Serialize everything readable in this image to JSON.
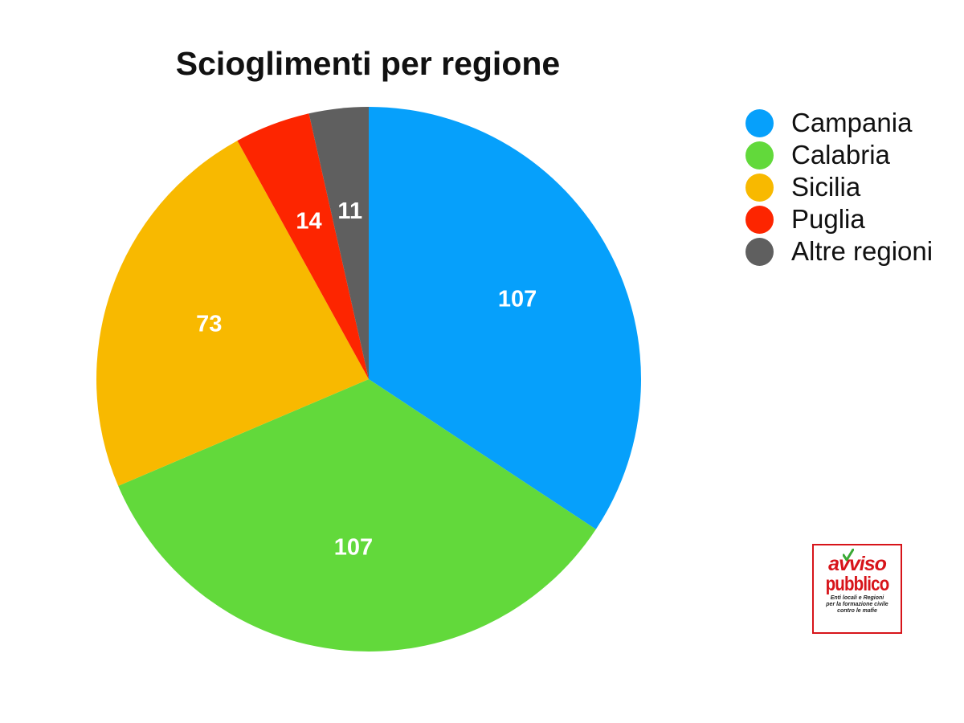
{
  "chart_data": {
    "type": "pie",
    "title": "Scioglimenti per regione",
    "labels": [
      "Campania",
      "Calabria",
      "Sicilia",
      "Puglia",
      "Altre regioni"
    ],
    "values": [
      107,
      107,
      73,
      14,
      11
    ],
    "colors": [
      "#06a0fb",
      "#62d93b",
      "#f8b900",
      "#fd2500",
      "#5f5f5f"
    ],
    "start_angle": "12 o'clock",
    "direction": "clockwise",
    "data_labels": true,
    "legend_position": "right"
  },
  "logo": {
    "line1": "avviso",
    "line2": "pubblico",
    "tagline": [
      "Enti locali e Regioni",
      "per la formazione civile",
      "contro le mafie"
    ]
  }
}
